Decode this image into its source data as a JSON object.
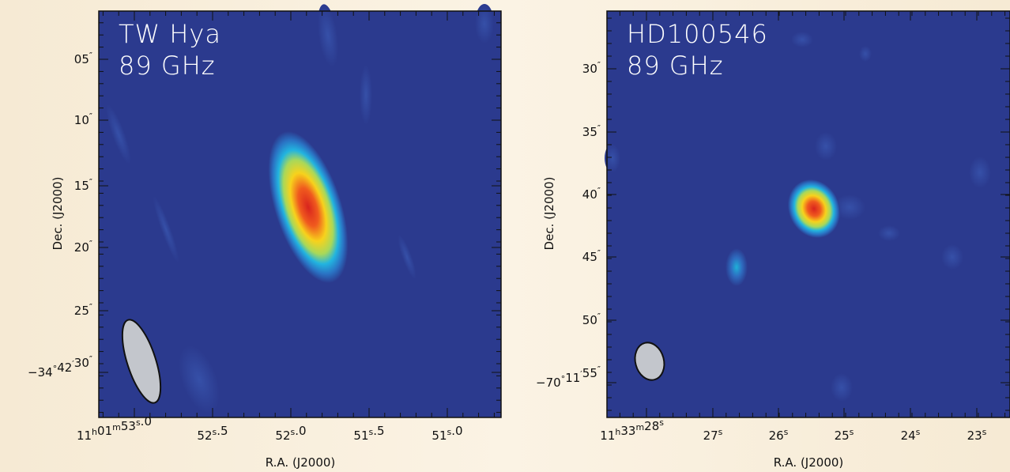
{
  "panels": [
    {
      "title": "TW Hya",
      "frequency": "89 GHz",
      "xlabel": "R.A. (J2000)",
      "ylabel": "Dec. (J2000)",
      "xticks": [
        "11h01m53s.0",
        "52s.5",
        "52s.0",
        "51s.5",
        "51s.0"
      ],
      "yticks": [
        "05″",
        "10″",
        "15″",
        "20″",
        "25″",
        "−34°42′30″"
      ]
    },
    {
      "title": "HD100546",
      "frequency": "89 GHz",
      "xlabel": "R.A. (J2000)",
      "ylabel": "Dec. (J2000)",
      "xticks": [
        "11h33m28s",
        "27s",
        "26s",
        "25s",
        "24s",
        "23s"
      ],
      "yticks": [
        "30″",
        "35″",
        "40″",
        "45″",
        "50″",
        "−70°11′55″"
      ]
    }
  ]
}
